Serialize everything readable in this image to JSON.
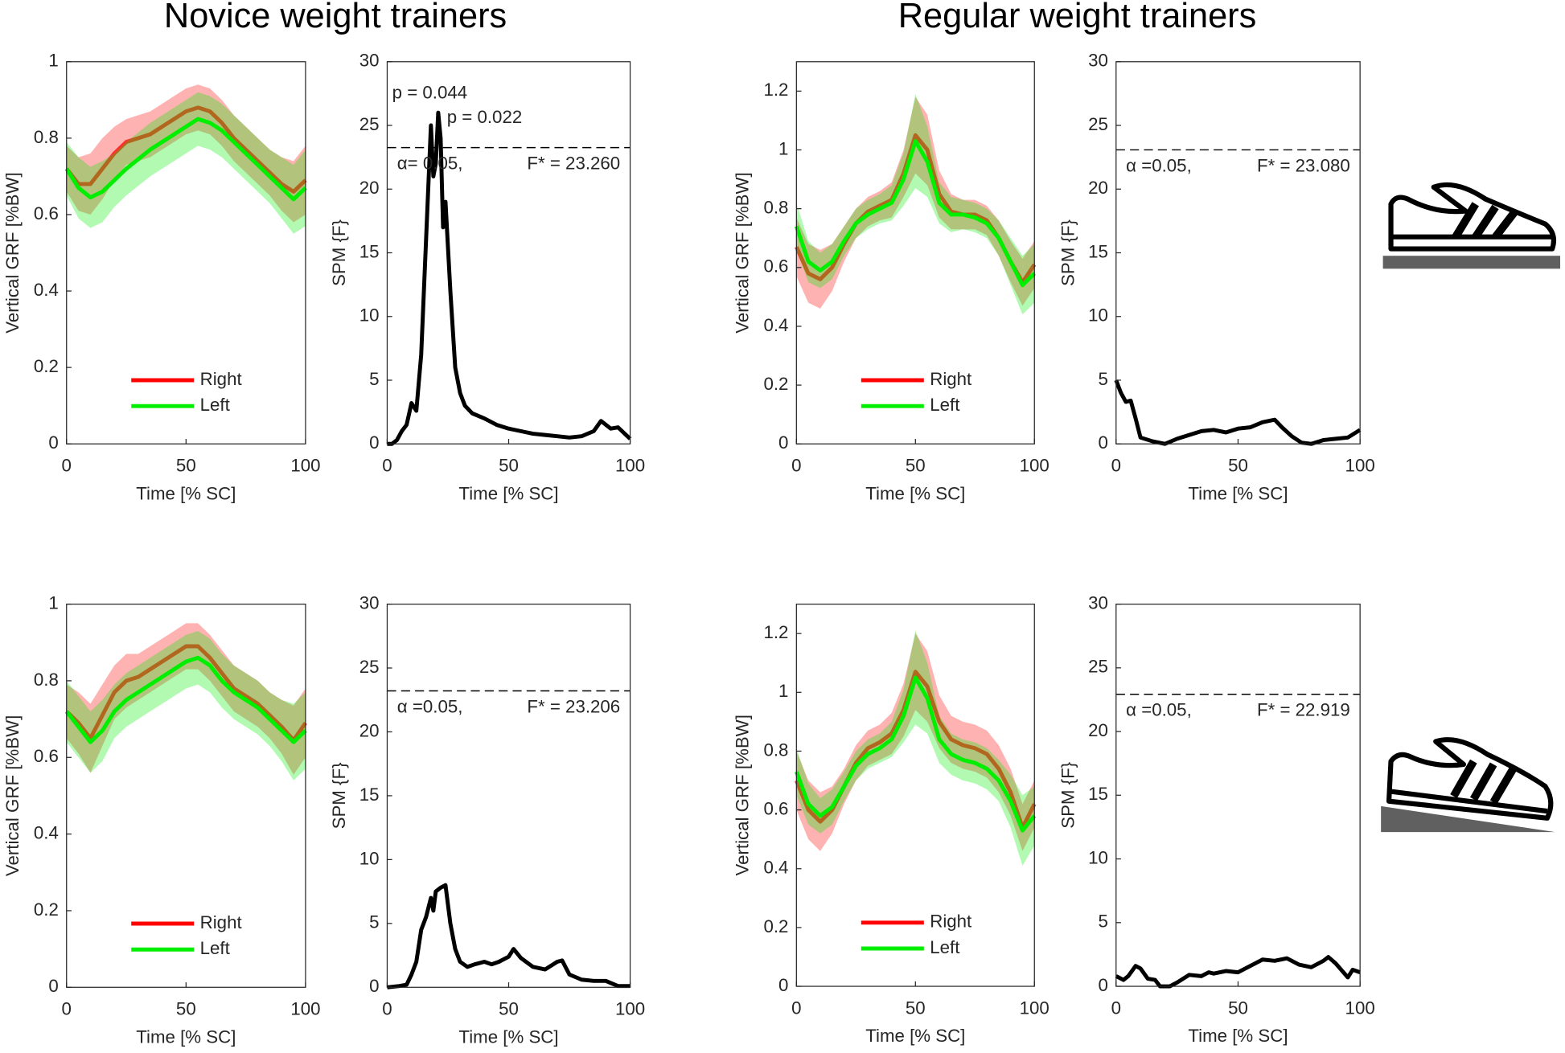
{
  "titles": [
    "Novice weight trainers",
    "Regular weight trainers"
  ],
  "chart_data": [
    {
      "type": "line",
      "xlabel": "Time [% SC]",
      "ylabel": "Vertical GRF [%BW]",
      "xlim": [
        0,
        100
      ],
      "xticks": [
        0,
        50,
        100
      ],
      "ylim": [
        0,
        1
      ],
      "yticks": [
        0,
        0.2,
        0.4,
        0.6,
        0.8,
        1
      ],
      "legend": "lower center",
      "x": [
        0,
        5,
        10,
        15,
        20,
        25,
        30,
        35,
        40,
        45,
        50,
        55,
        60,
        65,
        70,
        75,
        80,
        85,
        90,
        95,
        100
      ],
      "series": [
        {
          "name": "Right",
          "color": "#ff0000",
          "values": [
            0.72,
            0.68,
            0.68,
            0.72,
            0.76,
            0.79,
            0.8,
            0.81,
            0.83,
            0.85,
            0.87,
            0.88,
            0.87,
            0.84,
            0.8,
            0.77,
            0.74,
            0.71,
            0.68,
            0.66,
            0.69
          ],
          "sd": [
            0.06,
            0.07,
            0.08,
            0.08,
            0.07,
            0.06,
            0.06,
            0.06,
            0.06,
            0.06,
            0.06,
            0.06,
            0.06,
            0.06,
            0.06,
            0.06,
            0.06,
            0.06,
            0.07,
            0.08,
            0.09
          ]
        },
        {
          "name": "Left",
          "color": "#00ee00",
          "values": [
            0.72,
            0.67,
            0.645,
            0.66,
            0.69,
            0.72,
            0.745,
            0.77,
            0.79,
            0.81,
            0.83,
            0.85,
            0.84,
            0.82,
            0.79,
            0.76,
            0.73,
            0.7,
            0.67,
            0.64,
            0.67
          ],
          "sd": [
            0.07,
            0.08,
            0.08,
            0.08,
            0.07,
            0.07,
            0.07,
            0.07,
            0.07,
            0.07,
            0.07,
            0.07,
            0.07,
            0.07,
            0.07,
            0.07,
            0.07,
            0.07,
            0.08,
            0.09,
            0.1
          ]
        }
      ]
    },
    {
      "type": "line",
      "xlabel": "Time [% SC]",
      "ylabel": "SPM {F}",
      "xlim": [
        0,
        100
      ],
      "xticks": [
        0,
        50,
        100
      ],
      "ylim": [
        0,
        30
      ],
      "yticks": [
        0,
        5,
        10,
        15,
        20,
        25,
        30
      ],
      "threshold": 23.26,
      "alpha_label": "α= 0.05,",
      "threshold_label": "F* = 23.260",
      "annotations": [
        "p = 0.044",
        "p = 0.022"
      ],
      "x": [
        0,
        2,
        4,
        6,
        8,
        10,
        12,
        14,
        16,
        18,
        19,
        20,
        21,
        22,
        23,
        24,
        26,
        28,
        30,
        32,
        35,
        40,
        45,
        50,
        55,
        60,
        65,
        70,
        75,
        80,
        85,
        88,
        92,
        95,
        100
      ],
      "series": [
        {
          "name": "SPM",
          "color": "#000000",
          "values": [
            0,
            0,
            0.3,
            1,
            1.5,
            3.2,
            2.6,
            7,
            16,
            25,
            21,
            22,
            26,
            24,
            17,
            19,
            12,
            6,
            4,
            3,
            2.4,
            2,
            1.5,
            1.2,
            1,
            0.8,
            0.7,
            0.6,
            0.5,
            0.6,
            1,
            1.8,
            1.2,
            1.3,
            0.4
          ]
        }
      ]
    },
    {
      "type": "line",
      "xlabel": "Time [% SC]",
      "ylabel": "Vertical GRF [%BW]",
      "xlim": [
        0,
        100
      ],
      "xticks": [
        0,
        50,
        100
      ],
      "ylim": [
        0,
        1.3
      ],
      "yticks": [
        0,
        0.2,
        0.4,
        0.6,
        0.8,
        1,
        1.2
      ],
      "legend": "lower center",
      "x": [
        0,
        5,
        10,
        15,
        20,
        25,
        30,
        35,
        40,
        45,
        50,
        55,
        60,
        65,
        70,
        75,
        80,
        85,
        90,
        95,
        100
      ],
      "series": [
        {
          "name": "Right",
          "color": "#ff0000",
          "values": [
            0.67,
            0.58,
            0.56,
            0.6,
            0.68,
            0.75,
            0.79,
            0.81,
            0.83,
            0.92,
            1.05,
            1.0,
            0.85,
            0.79,
            0.78,
            0.78,
            0.76,
            0.7,
            0.62,
            0.55,
            0.61
          ],
          "sd": [
            0.1,
            0.1,
            0.1,
            0.08,
            0.06,
            0.05,
            0.05,
            0.05,
            0.06,
            0.08,
            0.13,
            0.12,
            0.08,
            0.06,
            0.05,
            0.05,
            0.05,
            0.06,
            0.07,
            0.08,
            0.08
          ]
        },
        {
          "name": "Left",
          "color": "#00ee00",
          "values": [
            0.74,
            0.62,
            0.59,
            0.62,
            0.69,
            0.75,
            0.78,
            0.8,
            0.82,
            0.9,
            1.03,
            0.96,
            0.82,
            0.78,
            0.78,
            0.77,
            0.75,
            0.7,
            0.62,
            0.54,
            0.58
          ],
          "sd": [
            0.08,
            0.07,
            0.06,
            0.06,
            0.05,
            0.05,
            0.05,
            0.05,
            0.06,
            0.09,
            0.16,
            0.12,
            0.07,
            0.06,
            0.05,
            0.05,
            0.05,
            0.06,
            0.08,
            0.1,
            0.1
          ]
        }
      ]
    },
    {
      "type": "line",
      "xlabel": "Time [% SC]",
      "ylabel": "SPM {F}",
      "xlim": [
        0,
        100
      ],
      "xticks": [
        0,
        50,
        100
      ],
      "ylim": [
        0,
        30
      ],
      "yticks": [
        0,
        5,
        10,
        15,
        20,
        25,
        30
      ],
      "threshold": 23.08,
      "alpha_label": "α =0.05,",
      "threshold_label": "F* = 23.080",
      "x": [
        0,
        2,
        4,
        6,
        8,
        10,
        15,
        20,
        25,
        30,
        35,
        40,
        45,
        50,
        55,
        60,
        65,
        68,
        72,
        76,
        80,
        85,
        90,
        95,
        100
      ],
      "series": [
        {
          "name": "SPM",
          "color": "#000000",
          "values": [
            5,
            4,
            3.3,
            3.4,
            2,
            0.5,
            0.2,
            0,
            0.4,
            0.7,
            1,
            1.1,
            0.9,
            1.2,
            1.3,
            1.7,
            1.9,
            1.3,
            0.6,
            0.1,
            0,
            0.3,
            0.4,
            0.5,
            1.1
          ]
        }
      ]
    },
    {
      "type": "line",
      "xlabel": "Time [% SC]",
      "ylabel": "Vertical GRF [%BW]",
      "xlim": [
        0,
        100
      ],
      "xticks": [
        0,
        50,
        100
      ],
      "ylim": [
        0,
        1
      ],
      "yticks": [
        0,
        0.2,
        0.4,
        0.6,
        0.8,
        1
      ],
      "legend": "lower center",
      "x": [
        0,
        5,
        10,
        15,
        20,
        25,
        30,
        35,
        40,
        45,
        50,
        55,
        60,
        65,
        70,
        75,
        80,
        85,
        90,
        95,
        100
      ],
      "series": [
        {
          "name": "Right",
          "color": "#ff0000",
          "values": [
            0.72,
            0.69,
            0.65,
            0.71,
            0.77,
            0.8,
            0.81,
            0.83,
            0.85,
            0.87,
            0.89,
            0.89,
            0.86,
            0.82,
            0.78,
            0.76,
            0.74,
            0.71,
            0.68,
            0.645,
            0.69
          ],
          "sd": [
            0.07,
            0.08,
            0.09,
            0.08,
            0.07,
            0.07,
            0.06,
            0.06,
            0.06,
            0.06,
            0.06,
            0.06,
            0.06,
            0.06,
            0.06,
            0.06,
            0.06,
            0.06,
            0.07,
            0.09,
            0.09
          ]
        },
        {
          "name": "Left",
          "color": "#00ee00",
          "values": [
            0.72,
            0.68,
            0.64,
            0.67,
            0.72,
            0.75,
            0.77,
            0.79,
            0.81,
            0.83,
            0.85,
            0.86,
            0.84,
            0.8,
            0.77,
            0.75,
            0.73,
            0.7,
            0.67,
            0.64,
            0.67
          ],
          "sd": [
            0.08,
            0.08,
            0.08,
            0.08,
            0.07,
            0.07,
            0.07,
            0.07,
            0.07,
            0.07,
            0.07,
            0.07,
            0.07,
            0.07,
            0.07,
            0.07,
            0.07,
            0.07,
            0.08,
            0.1,
            0.1
          ]
        }
      ]
    },
    {
      "type": "line",
      "xlabel": "Time [% SC]",
      "ylabel": "SPM {F}",
      "xlim": [
        0,
        100
      ],
      "xticks": [
        0,
        50,
        100
      ],
      "ylim": [
        0,
        30
      ],
      "yticks": [
        0,
        5,
        10,
        15,
        20,
        25,
        30
      ],
      "threshold": 23.206,
      "alpha_label": "α =0.05,",
      "threshold_label": "F* = 23.206",
      "x": [
        0,
        5,
        8,
        10,
        12,
        14,
        16,
        18,
        19,
        20,
        22,
        24,
        26,
        28,
        30,
        33,
        36,
        40,
        43,
        46,
        50,
        52,
        55,
        60,
        65,
        70,
        72,
        75,
        80,
        85,
        90,
        95,
        100
      ],
      "series": [
        {
          "name": "SPM",
          "color": "#000000",
          "values": [
            0,
            0.1,
            0.2,
            1,
            2,
            4.5,
            5.5,
            7,
            6,
            7.5,
            7.8,
            8,
            5,
            3,
            2,
            1.6,
            1.8,
            2,
            1.8,
            2,
            2.4,
            3,
            2.3,
            1.6,
            1.4,
            2,
            2.1,
            1,
            0.6,
            0.5,
            0.5,
            0.1,
            0.1
          ]
        }
      ]
    },
    {
      "type": "line",
      "xlabel": "Time [% SC]",
      "ylabel": "Vertical GRF [%BW]",
      "xlim": [
        0,
        100
      ],
      "xticks": [
        0,
        50,
        100
      ],
      "ylim": [
        0,
        1.3
      ],
      "yticks": [
        0,
        0.2,
        0.4,
        0.6,
        0.8,
        1,
        1.2
      ],
      "legend": "lower center",
      "x": [
        0,
        5,
        10,
        15,
        20,
        25,
        30,
        35,
        40,
        45,
        50,
        55,
        60,
        65,
        70,
        75,
        80,
        85,
        90,
        95,
        100
      ],
      "series": [
        {
          "name": "Right",
          "color": "#ff0000",
          "values": [
            0.7,
            0.6,
            0.56,
            0.6,
            0.68,
            0.76,
            0.81,
            0.83,
            0.86,
            0.94,
            1.07,
            1.02,
            0.9,
            0.84,
            0.82,
            0.81,
            0.79,
            0.74,
            0.66,
            0.54,
            0.62
          ],
          "sd": [
            0.1,
            0.1,
            0.1,
            0.08,
            0.06,
            0.06,
            0.06,
            0.06,
            0.07,
            0.09,
            0.13,
            0.12,
            0.09,
            0.08,
            0.08,
            0.08,
            0.08,
            0.08,
            0.08,
            0.08,
            0.08
          ]
        },
        {
          "name": "Left",
          "color": "#00ee00",
          "values": [
            0.73,
            0.62,
            0.58,
            0.61,
            0.68,
            0.75,
            0.79,
            0.81,
            0.84,
            0.92,
            1.05,
            0.98,
            0.84,
            0.79,
            0.77,
            0.76,
            0.74,
            0.7,
            0.63,
            0.53,
            0.58
          ],
          "sd": [
            0.08,
            0.07,
            0.06,
            0.06,
            0.05,
            0.05,
            0.05,
            0.05,
            0.06,
            0.09,
            0.16,
            0.12,
            0.08,
            0.07,
            0.07,
            0.07,
            0.07,
            0.07,
            0.09,
            0.12,
            0.1
          ]
        }
      ]
    },
    {
      "type": "line",
      "xlabel": "Time [% SC]",
      "ylabel": "SPM {F}",
      "xlim": [
        0,
        100
      ],
      "xticks": [
        0,
        50,
        100
      ],
      "ylim": [
        0,
        30
      ],
      "yticks": [
        0,
        5,
        10,
        15,
        20,
        25,
        30
      ],
      "threshold": 22.919,
      "alpha_label": "α =0.05,",
      "threshold_label": "F* = 22.919",
      "x": [
        0,
        3,
        5,
        8,
        10,
        13,
        16,
        18,
        22,
        25,
        30,
        35,
        38,
        40,
        45,
        50,
        55,
        60,
        65,
        70,
        75,
        80,
        85,
        87,
        90,
        95,
        97,
        100
      ],
      "series": [
        {
          "name": "SPM",
          "color": "#000000",
          "values": [
            0.8,
            0.5,
            0.8,
            1.6,
            1.4,
            0.6,
            0.5,
            0,
            0,
            0.3,
            0.9,
            0.8,
            1.1,
            1,
            1.2,
            1.1,
            1.6,
            2.1,
            2,
            2.2,
            1.7,
            1.5,
            2,
            2.3,
            1.8,
            0.7,
            1.3,
            1.1
          ]
        }
      ]
    }
  ]
}
